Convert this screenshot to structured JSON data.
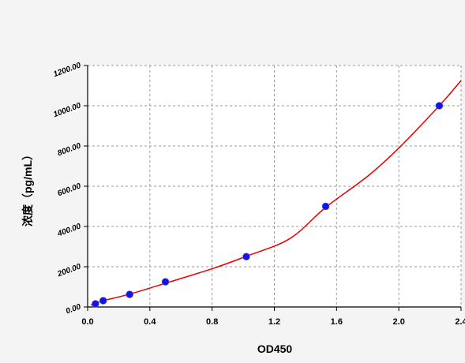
{
  "chart_data": {
    "type": "scatter",
    "title": "",
    "xlabel": "OD450",
    "ylabel": "浓度（pg/mL）",
    "xlim": [
      0.0,
      2.4
    ],
    "ylim": [
      0,
      1200
    ],
    "x_ticks": [
      "0.0",
      "0.4",
      "0.8",
      "1.2",
      "1.6",
      "2.0",
      "2.4"
    ],
    "y_ticks": [
      "0.00",
      "200.00",
      "400.00",
      "600.00",
      "800.00",
      "1000.00",
      "1200.00"
    ],
    "grid": true,
    "legend": "none",
    "series": [
      {
        "kind": "points",
        "color": "#1414e6",
        "points": [
          {
            "x": 0.05,
            "y": 15.6
          },
          {
            "x": 0.1,
            "y": 31.25
          },
          {
            "x": 0.27,
            "y": 62.5
          },
          {
            "x": 0.5,
            "y": 125
          },
          {
            "x": 1.02,
            "y": 250
          },
          {
            "x": 1.53,
            "y": 500
          },
          {
            "x": 2.26,
            "y": 1000
          }
        ]
      },
      {
        "kind": "fit-curve",
        "color": "#e60000",
        "points": [
          {
            "x": 0.02,
            "y": 10
          },
          {
            "x": 0.05,
            "y": 18
          },
          {
            "x": 0.1,
            "y": 31
          },
          {
            "x": 0.27,
            "y": 64
          },
          {
            "x": 0.5,
            "y": 118
          },
          {
            "x": 0.8,
            "y": 190
          },
          {
            "x": 1.02,
            "y": 252
          },
          {
            "x": 1.3,
            "y": 340
          },
          {
            "x": 1.53,
            "y": 495
          },
          {
            "x": 1.8,
            "y": 650
          },
          {
            "x": 2.0,
            "y": 790
          },
          {
            "x": 2.26,
            "y": 1000
          },
          {
            "x": 2.4,
            "y": 1125
          }
        ]
      }
    ]
  }
}
